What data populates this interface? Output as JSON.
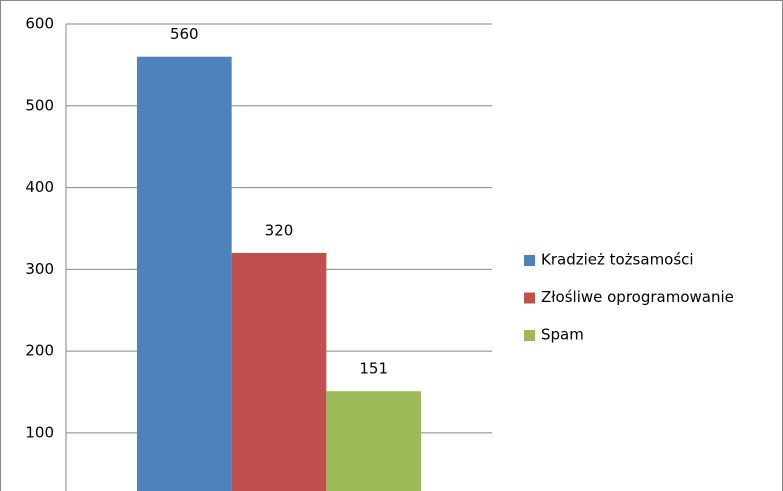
{
  "chart_data": {
    "type": "bar",
    "categories": [
      null
    ],
    "series": [
      {
        "name": "Kradzież tożsamości",
        "color": "#4f81bd",
        "values": [
          560
        ]
      },
      {
        "name": "Złośliwe oprogramowanie",
        "color": "#c0504d",
        "values": [
          320
        ]
      },
      {
        "name": "Spam",
        "color": "#9bbb59",
        "values": [
          151
        ]
      }
    ],
    "ylim": [
      29,
      600
    ],
    "yticks": [
      100,
      200,
      300,
      400,
      500,
      600
    ],
    "grid": true,
    "legend": "right"
  }
}
